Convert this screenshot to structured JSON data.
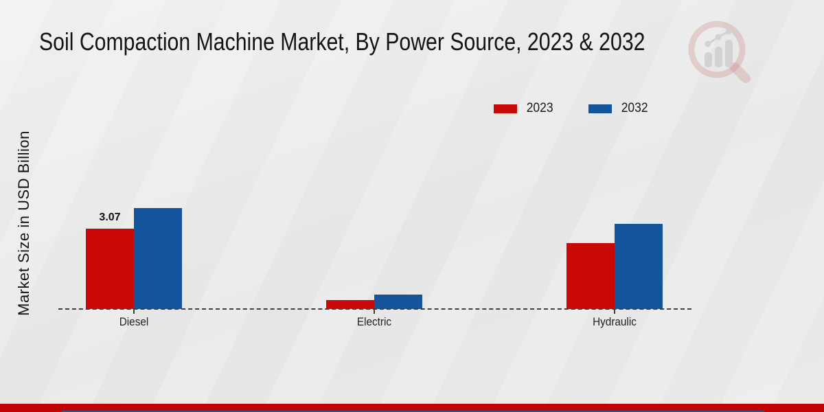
{
  "page": {
    "background_color": "#e8e8e8",
    "footer_bar_color": "#c00404",
    "footer_line_color": "#24549c",
    "logo_icon": "magnifier-bar-chart-watermark"
  },
  "chart_data": {
    "type": "bar",
    "title": "Soil Compaction Machine Market, By Power Source, 2023 & 2032",
    "ylabel": "Market Size in USD Billion",
    "xlabel": "",
    "categories": [
      "Diesel",
      "Electric",
      "Hydraulic"
    ],
    "series": [
      {
        "name": "2023",
        "color": "#c90808",
        "values": [
          3.07,
          0.35,
          2.52
        ],
        "data_labels": [
          "3.07",
          "",
          ""
        ]
      },
      {
        "name": "2032",
        "color": "#14549c",
        "values": [
          3.86,
          0.55,
          3.26
        ],
        "data_labels": [
          "",
          "",
          ""
        ]
      }
    ],
    "ylim": [
      0,
      4.2
    ],
    "grid": false,
    "baseline_style": "dashed",
    "legend_position": "top-right",
    "value_label_shown": "3.07"
  }
}
